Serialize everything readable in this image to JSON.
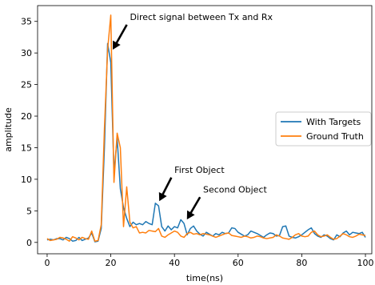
{
  "chart_data": {
    "type": "line",
    "title": "",
    "xlabel": "time(ns)",
    "ylabel": "amplitude",
    "xlim": [
      -3,
      102
    ],
    "ylim": [
      -1.8,
      37.5
    ],
    "xticks": [
      0,
      20,
      40,
      60,
      80,
      100
    ],
    "yticks": [
      0,
      5,
      10,
      15,
      20,
      25,
      30,
      35
    ],
    "grid": false,
    "legend_position": "center-right",
    "series": [
      {
        "name": "With Targets",
        "color": "#1f77b4",
        "x": [
          0,
          1,
          2,
          3,
          4,
          5,
          6,
          7,
          8,
          9,
          10,
          11,
          12,
          13,
          14,
          15,
          16,
          17,
          18,
          19,
          20,
          21,
          22,
          23,
          24,
          25,
          26,
          27,
          28,
          29,
          30,
          31,
          32,
          33,
          34,
          35,
          36,
          37,
          38,
          39,
          40,
          41,
          42,
          43,
          44,
          45,
          46,
          47,
          48,
          49,
          50,
          51,
          52,
          53,
          54,
          55,
          56,
          57,
          58,
          59,
          60,
          61,
          62,
          63,
          64,
          65,
          66,
          67,
          68,
          69,
          70,
          71,
          72,
          73,
          74,
          75,
          76,
          77,
          78,
          79,
          80,
          81,
          82,
          83,
          84,
          85,
          86,
          87,
          88,
          89,
          90,
          91,
          92,
          93,
          94,
          95,
          96,
          97,
          98,
          99,
          100
        ],
        "y": [
          0.4,
          0.5,
          0.4,
          0.6,
          0.6,
          0.4,
          0.8,
          0.6,
          0.2,
          0.3,
          0.8,
          0.3,
          0.5,
          0.7,
          1.5,
          0.1,
          0.2,
          2.2,
          15.0,
          31.5,
          28.5,
          11.0,
          16.5,
          8.5,
          5.5,
          3.8,
          2.5,
          3.2,
          2.8,
          3.0,
          2.8,
          3.3,
          3.0,
          2.8,
          6.2,
          5.8,
          2.5,
          1.8,
          2.6,
          2.0,
          2.5,
          2.3,
          3.6,
          3.0,
          1.2,
          2.2,
          2.6,
          1.8,
          1.3,
          1.0,
          1.6,
          1.3,
          1.0,
          1.4,
          1.2,
          1.6,
          1.4,
          1.5,
          2.3,
          2.2,
          1.6,
          1.3,
          1.0,
          1.2,
          1.8,
          1.6,
          1.4,
          1.1,
          0.8,
          1.2,
          1.5,
          1.4,
          1.0,
          1.1,
          2.5,
          2.6,
          1.0,
          0.8,
          0.7,
          0.9,
          1.2,
          1.6,
          2.0,
          2.3,
          1.4,
          1.0,
          0.8,
          1.2,
          1.0,
          0.6,
          0.4,
          1.2,
          0.9,
          1.5,
          1.8,
          1.2,
          1.6,
          1.5,
          1.4,
          1.6,
          0.8
        ]
      },
      {
        "name": "Ground Truth",
        "color": "#ff7f0e",
        "x": [
          0,
          1,
          2,
          3,
          4,
          5,
          6,
          7,
          8,
          9,
          10,
          11,
          12,
          13,
          14,
          15,
          16,
          17,
          18,
          19,
          20,
          21,
          22,
          23,
          24,
          25,
          26,
          27,
          28,
          29,
          30,
          31,
          32,
          33,
          34,
          35,
          36,
          37,
          38,
          39,
          40,
          41,
          42,
          43,
          44,
          45,
          46,
          47,
          48,
          49,
          50,
          51,
          52,
          53,
          54,
          55,
          56,
          57,
          58,
          59,
          60,
          61,
          62,
          63,
          64,
          65,
          66,
          67,
          68,
          69,
          70,
          71,
          72,
          73,
          74,
          75,
          76,
          77,
          78,
          79,
          80,
          81,
          82,
          83,
          84,
          85,
          86,
          87,
          88,
          89,
          90,
          91,
          92,
          93,
          94,
          95,
          96,
          97,
          98,
          99,
          100
        ],
        "y": [
          0.6,
          0.3,
          0.4,
          0.5,
          0.8,
          0.7,
          0.5,
          0.2,
          0.9,
          0.7,
          0.4,
          0.8,
          0.6,
          0.5,
          1.8,
          0.2,
          0.3,
          2.8,
          18.0,
          30.5,
          36.0,
          9.5,
          17.3,
          15.0,
          2.5,
          8.8,
          3.2,
          2.3,
          2.5,
          1.5,
          1.6,
          1.5,
          1.9,
          1.8,
          1.7,
          2.2,
          1.0,
          0.8,
          1.2,
          1.5,
          1.8,
          1.6,
          1.0,
          0.8,
          1.4,
          1.6,
          1.3,
          1.4,
          1.2,
          1.4,
          1.3,
          1.2,
          1.0,
          0.8,
          1.0,
          1.2,
          1.4,
          1.5,
          1.1,
          1.0,
          0.9,
          0.8,
          1.0,
          0.9,
          0.7,
          0.8,
          1.0,
          0.9,
          0.7,
          0.6,
          0.7,
          0.8,
          1.2,
          1.0,
          0.7,
          0.6,
          0.5,
          0.8,
          1.2,
          1.4,
          1.0,
          0.9,
          1.0,
          1.6,
          1.8,
          1.2,
          0.9,
          1.0,
          1.2,
          0.8,
          0.5,
          0.6,
          1.0,
          1.4,
          1.2,
          0.9,
          0.8,
          1.0,
          1.3,
          1.2,
          1.1
        ]
      }
    ],
    "annotations": [
      {
        "text": "Direct signal between Tx and Rx",
        "x": 20.7,
        "y": 30.6,
        "tx": 26,
        "ty": 35.2
      },
      {
        "text": "First Object",
        "x": 35.3,
        "y": 6.6,
        "tx": 40.0,
        "ty": 11.0
      },
      {
        "text": "Second Object",
        "x": 44.0,
        "y": 3.7,
        "tx": 49.0,
        "ty": 7.9
      }
    ]
  }
}
